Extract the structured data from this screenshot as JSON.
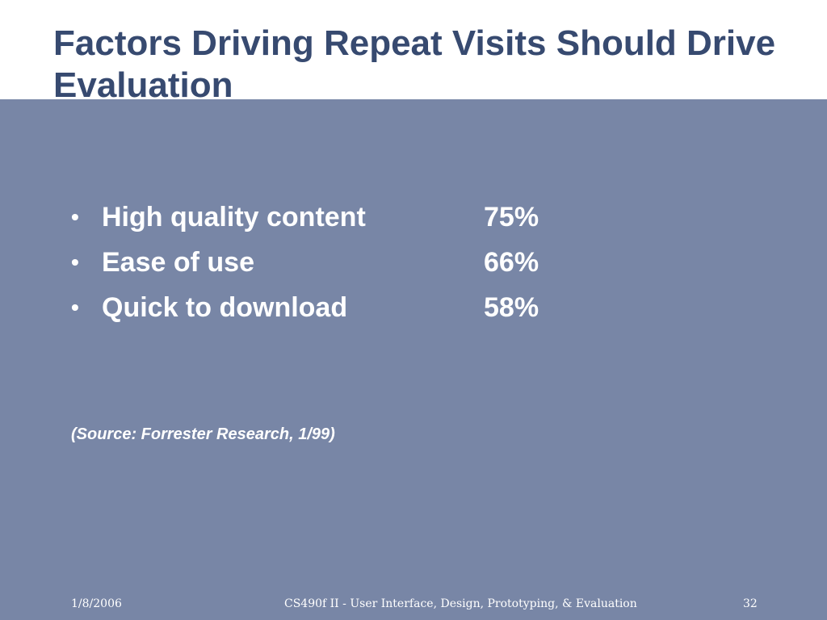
{
  "slide": {
    "title": "Factors Driving Repeat Visits Should Drive Evaluation",
    "bullets": [
      {
        "marker": "•",
        "label": "High quality content",
        "value": "75%"
      },
      {
        "marker": "•",
        "label": "Ease of use",
        "value": "66%"
      },
      {
        "marker": "•",
        "label": "Quick to download",
        "value": "58%"
      }
    ],
    "source": "(Source: Forrester Research, 1/99)"
  },
  "footer": {
    "date": "1/8/2006",
    "course": "CS490f II - User Interface, Design, Prototyping, & Evaluation",
    "page": "32"
  },
  "colors": {
    "title": "#374a70",
    "body_background": "#7886a6",
    "text": "#ffffff"
  }
}
